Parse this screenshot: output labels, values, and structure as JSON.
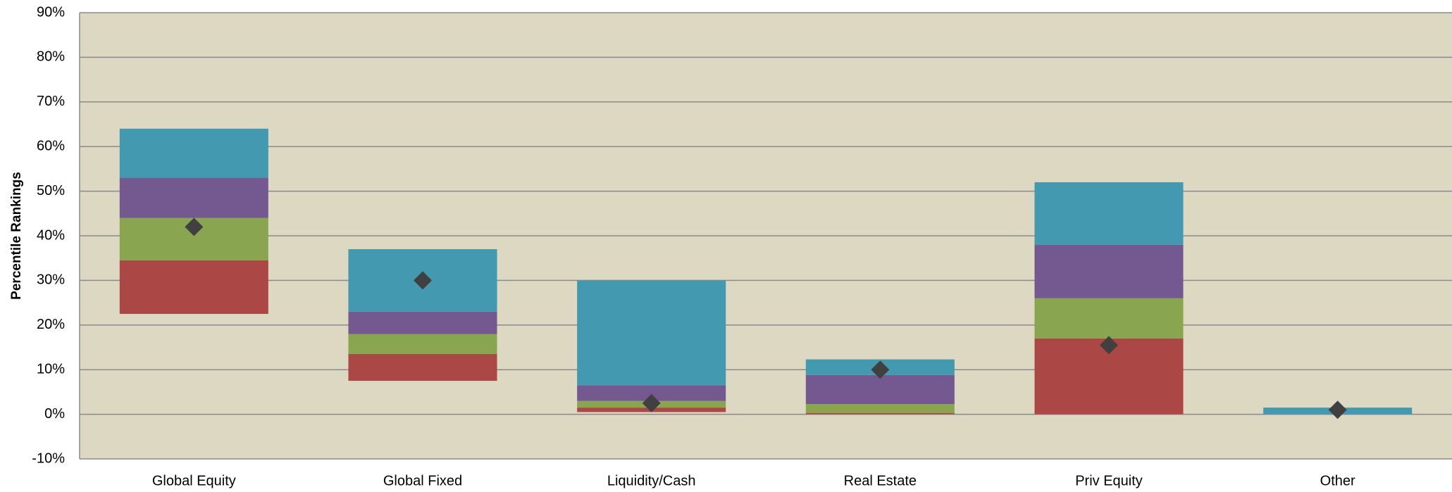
{
  "chart_data": {
    "type": "floating-stacked-bar",
    "y_label": "Percentile Rankings",
    "categories": [
      "Global Equity",
      "Global Fixed",
      "Liquidity/Cash",
      "Real Estate",
      "Priv Equity",
      "Other"
    ],
    "bottoms": [
      22.5,
      7.5,
      0.5,
      0,
      0,
      0
    ],
    "series": [
      {
        "color": "#ab4745",
        "values": [
          12,
          6,
          1,
          0.3,
          17,
          0
        ]
      },
      {
        "color": "#8aa54f",
        "values": [
          9.5,
          4.5,
          1.5,
          2,
          9,
          0
        ]
      },
      {
        "color": "#735990",
        "values": [
          9,
          5,
          3.5,
          6.5,
          12,
          0
        ]
      },
      {
        "color": "#4299b0",
        "values": [
          11,
          14,
          23.5,
          3.5,
          14,
          1.5
        ]
      }
    ],
    "markers": {
      "color": "#404040",
      "values": [
        42,
        30,
        2.5,
        10,
        15.5,
        1
      ]
    },
    "ylim": [
      -10,
      90
    ],
    "yticks": [
      {
        "value": -10,
        "label": "-10%"
      },
      {
        "value": 0,
        "label": "0%"
      },
      {
        "value": 10,
        "label": "10%"
      },
      {
        "value": 20,
        "label": "20%"
      },
      {
        "value": 30,
        "label": "30%"
      },
      {
        "value": 40,
        "label": "40%"
      },
      {
        "value": 50,
        "label": "50%"
      },
      {
        "value": 60,
        "label": "60%"
      },
      {
        "value": 70,
        "label": "70%"
      },
      {
        "value": 80,
        "label": "80%"
      },
      {
        "value": 90,
        "label": "90%"
      }
    ],
    "grid": true,
    "background": "#ddd8c2"
  }
}
